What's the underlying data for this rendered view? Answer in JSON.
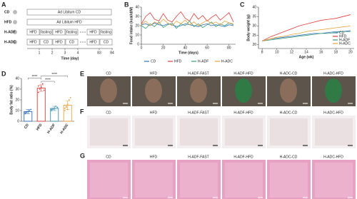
{
  "letters": [
    "A",
    "B",
    "C",
    "D",
    "E",
    "F",
    "G"
  ],
  "schematic": {
    "rows": [
      {
        "label": "CD",
        "boxes": [
          "Ad Libitum CD"
        ]
      },
      {
        "label": "HFD",
        "boxes": [
          "Ad Libitum HFD"
        ]
      },
      {
        "label": "H-ADF",
        "boxes": [
          "HFD",
          "fasting",
          "HFD",
          "fasting",
          "HFD",
          "fasting"
        ]
      },
      {
        "label": "H-ADC",
        "boxes": [
          "HFD",
          "CD",
          "HFD",
          "CD",
          "HFD",
          "CD"
        ]
      }
    ],
    "days": [
      "1",
      "2",
      "3",
      "4",
      "83",
      "84"
    ],
    "axis_label": "Time (day)"
  },
  "chart_data": [
    {
      "type": "line",
      "y_label": "Food intake (kcal/d/M)",
      "x_label": "Time (days)",
      "legend": "bottom",
      "x": [
        0,
        4,
        8,
        12,
        16,
        20,
        24,
        28,
        32,
        36,
        40,
        44,
        48,
        52,
        56,
        60,
        64,
        68,
        72,
        76,
        80,
        84
      ],
      "xlim": [
        0,
        86
      ],
      "xticks": [
        0,
        20,
        40,
        60,
        80
      ],
      "ylim": [
        0,
        40
      ],
      "yticks": [
        0,
        10,
        20,
        30,
        40
      ],
      "series": [
        {
          "name": "CD",
          "color": "#2e6fb7",
          "values": [
            21,
            22,
            20,
            23,
            21,
            20,
            22,
            21,
            19,
            20,
            22,
            21,
            20,
            19,
            21,
            22,
            20,
            21,
            20,
            19,
            21,
            20
          ]
        },
        {
          "name": "HFD",
          "color": "#e03a3a",
          "values": [
            22,
            30,
            34,
            27,
            25,
            33,
            26,
            24,
            30,
            35,
            28,
            25,
            33,
            27,
            31,
            25,
            29,
            32,
            26,
            30,
            34,
            24
          ]
        },
        {
          "name": "H-ADF",
          "color": "#3a9a7a",
          "values": [
            20,
            17,
            22,
            19,
            24,
            18,
            21,
            23,
            17,
            22,
            20,
            25,
            19,
            22,
            18,
            21,
            24,
            19,
            22,
            20,
            23,
            21
          ]
        },
        {
          "name": "H-ADC",
          "color": "#e8a23c",
          "values": [
            21,
            25,
            20,
            24,
            22,
            27,
            23,
            20,
            25,
            22,
            26,
            21,
            24,
            20,
            23,
            26,
            22,
            24,
            21,
            25,
            23,
            22
          ]
        }
      ]
    },
    {
      "type": "line",
      "y_label": "Body weight (g)",
      "x_label": "Age (wk)",
      "legend": "lower right",
      "x": [
        8,
        9,
        10,
        11,
        12,
        13,
        14,
        15,
        16,
        17,
        18,
        19,
        20
      ],
      "xlim": [
        7.5,
        20.5
      ],
      "xticks": [
        8,
        10,
        12,
        14,
        16,
        18,
        20
      ],
      "ylim": [
        18,
        40
      ],
      "yticks": [
        20,
        25,
        30,
        35,
        40
      ],
      "series": [
        {
          "name": "CD",
          "color": "#2e6fb7",
          "values": [
            22,
            23,
            23.5,
            24,
            24.5,
            25,
            25.5,
            26,
            26,
            26.5,
            27,
            27,
            27.5
          ]
        },
        {
          "name": "HFD",
          "color": "#e03a3a",
          "values": [
            22,
            24,
            25.5,
            27,
            28.5,
            30,
            31,
            32,
            33,
            33.5,
            34,
            35,
            36
          ]
        },
        {
          "name": "H-ADF",
          "color": "#3a9a7a",
          "values": [
            22,
            22.5,
            23,
            23.5,
            24,
            24.5,
            25,
            25.5,
            26,
            26,
            26.5,
            27,
            27
          ]
        },
        {
          "name": "H-ADC",
          "color": "#e8a23c",
          "values": [
            22,
            23,
            24,
            24.5,
            25.5,
            26,
            27,
            27.5,
            28,
            28.5,
            29,
            29.5,
            30
          ]
        }
      ]
    },
    {
      "type": "bar",
      "y_label": "Body fat ratio (%)",
      "categories": [
        "CD",
        "HFD",
        "H-ADF",
        "H-ADC"
      ],
      "values": [
        9,
        31,
        12,
        15
      ],
      "errors": [
        2,
        3,
        2,
        4
      ],
      "colors": [
        "#2e6fb7",
        "#e03a3a",
        "#3a8fb0",
        "#e8a23c"
      ],
      "points": [
        [
          7,
          8,
          9,
          10,
          11,
          8,
          9
        ],
        [
          27,
          30,
          32,
          35,
          29,
          33
        ],
        [
          10,
          11,
          12,
          14,
          13,
          11,
          12
        ],
        [
          10,
          13,
          16,
          20,
          22,
          12,
          14,
          11
        ]
      ],
      "ylim": [
        0,
        40
      ],
      "yticks": [
        0,
        10,
        20,
        30,
        40
      ],
      "annotations": [
        "****",
        "****",
        "****"
      ]
    }
  ],
  "image_panels": [
    {
      "columns": [
        "CD",
        "HFD",
        "H-ADF-FAST",
        "H-ADF-HFD",
        "H-ADC-CD",
        "H-ADC-HFD"
      ]
    },
    {
      "columns": [
        "CD",
        "HFD",
        "H-ADF-FAST",
        "H-ADF-HFD",
        "H-ADC-CD",
        "H-ADC-HFD"
      ]
    },
    {
      "columns": [
        "CD",
        "HFD",
        "H-ADF-FAST",
        "H-ADF-HFD",
        "H-ADC-CD",
        "H-ADC-HFD"
      ]
    }
  ]
}
